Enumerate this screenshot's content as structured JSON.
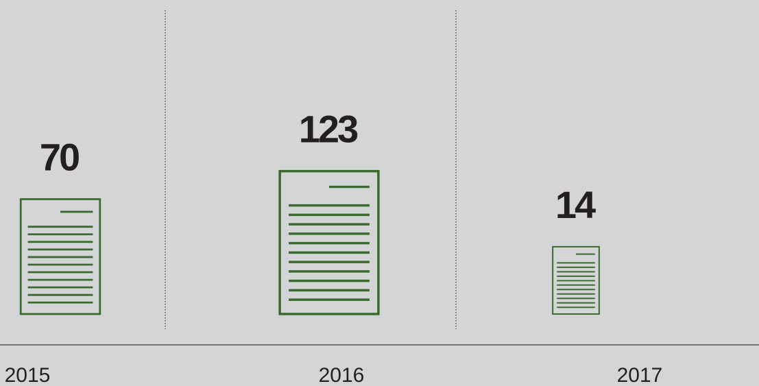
{
  "chart_data": {
    "type": "pictorial",
    "categories": [
      "2015",
      "2016",
      "2017"
    ],
    "values": [
      70,
      123,
      14
    ],
    "color": "#3b6a2e"
  }
}
